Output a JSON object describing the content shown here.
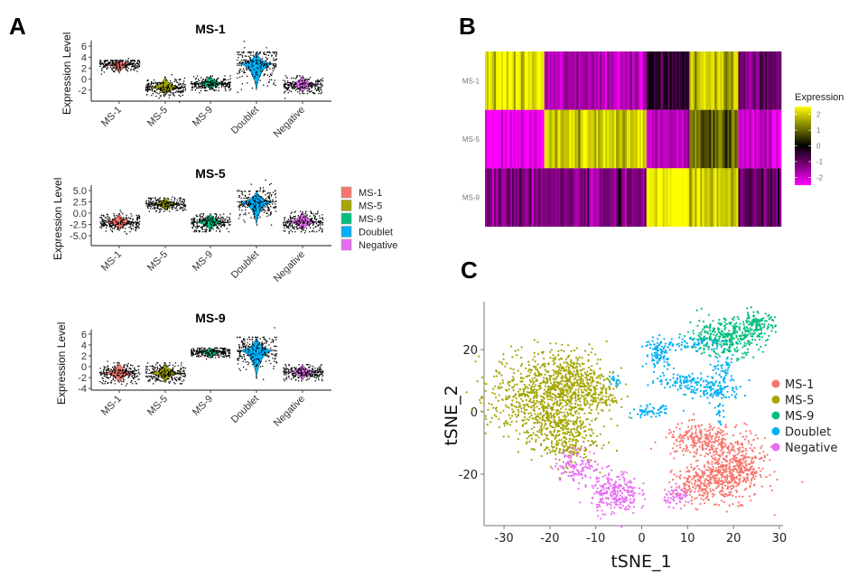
{
  "panel_labels": {
    "a": "A",
    "b": "B",
    "c": "C"
  },
  "colors": {
    "MS-1": "#F8766D",
    "MS-5": "#A3A500",
    "MS-9": "#00BF7D",
    "Doublet": "#00B0F6",
    "Negative": "#E76BF3"
  },
  "legend_entries": [
    "MS-1",
    "MS-5",
    "MS-9",
    "Doublet",
    "Negative"
  ],
  "chart_data": [
    {
      "type": "violin",
      "title": "MS-1",
      "ylabel": "Expression Level",
      "categories": [
        "MS-1",
        "MS-5",
        "MS-9",
        "Doublet",
        "Negative"
      ],
      "yticks": [
        "6",
        "4",
        "2",
        "0",
        "-2"
      ],
      "ytick_values": [
        6,
        4,
        2,
        0,
        -2
      ],
      "ylim": [
        -4,
        7
      ],
      "groups": [
        {
          "center": 2.8,
          "min": 1.0,
          "max": 3.5
        },
        {
          "center": -1.5,
          "min": -3.0,
          "max": 0.5
        },
        {
          "center": -0.8,
          "min": -2.0,
          "max": 0.7
        },
        {
          "center": 2.8,
          "min": -2.0,
          "max": 5.0
        },
        {
          "center": -1.0,
          "min": -2.5,
          "max": 0.7
        }
      ]
    },
    {
      "type": "violin",
      "title": "MS-5",
      "ylabel": "Expression Level",
      "categories": [
        "MS-1",
        "MS-5",
        "MS-9",
        "Doublet",
        "Negative"
      ],
      "yticks": [
        "5.0",
        "2.5",
        "0.0",
        "-2.5",
        "-5.0"
      ],
      "ytick_values": [
        5,
        2.5,
        0,
        -2.5,
        -5
      ],
      "ylim": [
        -7.2,
        6.2
      ],
      "groups": [
        {
          "center": -2.0,
          "min": -4.0,
          "max": 0.0
        },
        {
          "center": 2.0,
          "min": 0.5,
          "max": 3.5
        },
        {
          "center": -2.0,
          "min": -4.0,
          "max": 0.0
        },
        {
          "center": 2.5,
          "min": -2.5,
          "max": 5.0
        },
        {
          "center": -2.0,
          "min": -4.0,
          "max": 0.5
        }
      ]
    },
    {
      "type": "violin",
      "title": "MS-9",
      "ylabel": "Expression Level",
      "categories": [
        "MS-1",
        "MS-5",
        "MS-9",
        "Doublet",
        "Negative"
      ],
      "yticks": [
        "6",
        "4",
        "2",
        "0",
        "-2",
        "-4"
      ],
      "ytick_values": [
        6,
        4,
        2,
        0,
        -2,
        -4
      ],
      "ylim": [
        -4.3,
        6.8
      ],
      "groups": [
        {
          "center": -1.2,
          "min": -3.0,
          "max": 0.8
        },
        {
          "center": -1.2,
          "min": -3.0,
          "max": 0.8
        },
        {
          "center": 2.8,
          "min": 1.5,
          "max": 3.5
        },
        {
          "center": 3.0,
          "min": -2.0,
          "max": 5.5
        },
        {
          "center": -1.0,
          "min": -2.5,
          "max": 0.5
        }
      ]
    },
    {
      "type": "heatmap",
      "rows": [
        "MS-1",
        "MS-5",
        "MS-9"
      ],
      "column_groups": [
        "MS-1",
        "MS-5",
        "MS-9",
        "Doublet",
        "Negative"
      ],
      "column_group_share": [
        0.2,
        0.345,
        0.145,
        0.165,
        0.145
      ],
      "values": [
        [
          2.3,
          -1.8,
          -0.5,
          1.8,
          -1.0
        ],
        [
          -2.3,
          2.0,
          -1.8,
          0.8,
          -2.0
        ],
        [
          -1.2,
          -1.3,
          2.5,
          2.0,
          -1.0
        ]
      ],
      "legend_title": "Expression",
      "legend_ticks": [
        "2",
        "1",
        "0",
        "-1",
        "-2"
      ],
      "legend_tick_values": [
        2,
        1,
        0,
        -1,
        -2
      ],
      "color_range": [
        -2.5,
        2.5
      ],
      "colorscale": [
        "#FF00FF",
        "#000000",
        "#FFFF00"
      ]
    },
    {
      "type": "scatter",
      "xlabel": "tSNE_1",
      "ylabel": "tSNE_2",
      "xticks": [
        -30,
        -20,
        -10,
        0,
        10,
        20,
        30
      ],
      "yticks": [
        20,
        0,
        -20
      ],
      "xlim": [
        -34,
        31
      ],
      "ylim": [
        -36,
        33
      ],
      "legend_position": "right",
      "clusters": [
        {
          "label": "MS-5",
          "blobs": [
            [
              -22,
              5,
              5.5,
              7,
              700
            ],
            [
              -14,
              9,
              4,
              5,
              400
            ],
            [
              -17,
              -8,
              3.5,
              4.5,
              300
            ],
            [
              -8,
              4,
              1.5,
              1.5,
              40
            ]
          ]
        },
        {
          "label": "Negative",
          "blobs": [
            [
              -14,
              -17,
              2.5,
              2.5,
              120
            ],
            [
              -6,
              -26,
              2.6,
              3.5,
              260
            ],
            [
              8,
              -27,
              1.5,
              1.5,
              70
            ]
          ]
        },
        {
          "label": "MS-1",
          "blobs": [
            [
              13,
              -9,
              4,
              2.5,
              250
            ],
            [
              20,
              -18,
              3.5,
              5,
              450
            ],
            [
              14,
              -23,
              3.5,
              3,
              250
            ]
          ]
        },
        {
          "label": "MS-9",
          "blobs": [
            [
              18,
              24,
              4,
              3,
              350
            ],
            [
              25,
              28,
              2,
              2,
              120
            ]
          ]
        },
        {
          "label": "Doublet",
          "blobs": [
            [
              4,
              19,
              1.6,
              2.5,
              110
            ],
            [
              9,
              10,
              3,
              1.3,
              90
            ],
            [
              16,
              7,
              3,
              1.8,
              120
            ],
            [
              18,
              13,
              1,
              2.5,
              50
            ],
            [
              12,
              22,
              3.5,
              1,
              60
            ],
            [
              2,
              0,
              2,
              1,
              60
            ],
            [
              17,
              0,
              0.4,
              2,
              20
            ],
            [
              -6,
              10,
              0.7,
              1,
              20
            ]
          ]
        }
      ]
    }
  ]
}
